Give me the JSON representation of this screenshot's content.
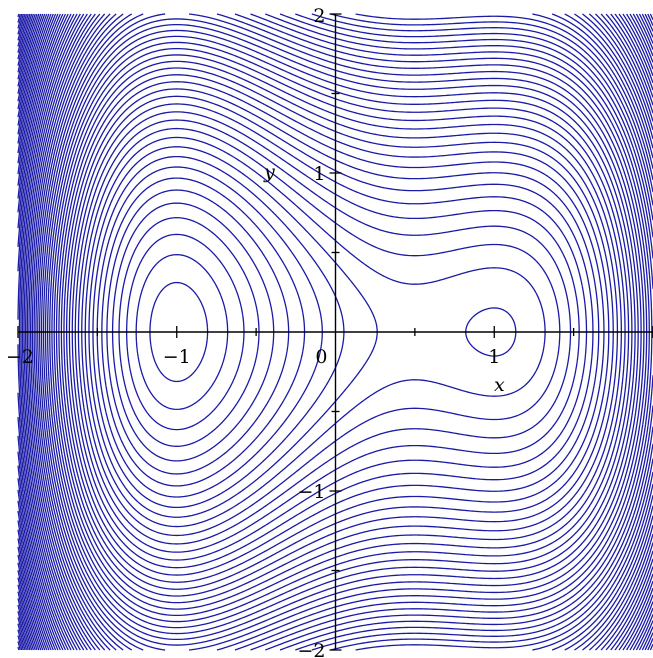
{
  "chart_data": {
    "type": "contour",
    "title": "",
    "xlabel": "x",
    "ylabel": "y",
    "xlim": [
      -2,
      2
    ],
    "ylim": [
      -2,
      2
    ],
    "x_ticks": [
      {
        "value": -2,
        "label": "−2"
      },
      {
        "value": -1,
        "label": "−1"
      },
      {
        "value": 0,
        "label": "0"
      },
      {
        "value": 1,
        "label": "1"
      }
    ],
    "y_ticks": [
      {
        "value": 2,
        "label": "2"
      },
      {
        "value": 1,
        "label": "1"
      },
      {
        "value": -1,
        "label": "−1"
      },
      {
        "value": -2,
        "label": "−2"
      }
    ],
    "line_color": "#1a1aa6",
    "grid": false,
    "legend": "none",
    "features": {
      "saddle_points": [
        [
          -1.1,
          0
        ],
        [
          0.95,
          0
        ]
      ],
      "local_minimum": [
        0.33,
        0
      ]
    }
  }
}
